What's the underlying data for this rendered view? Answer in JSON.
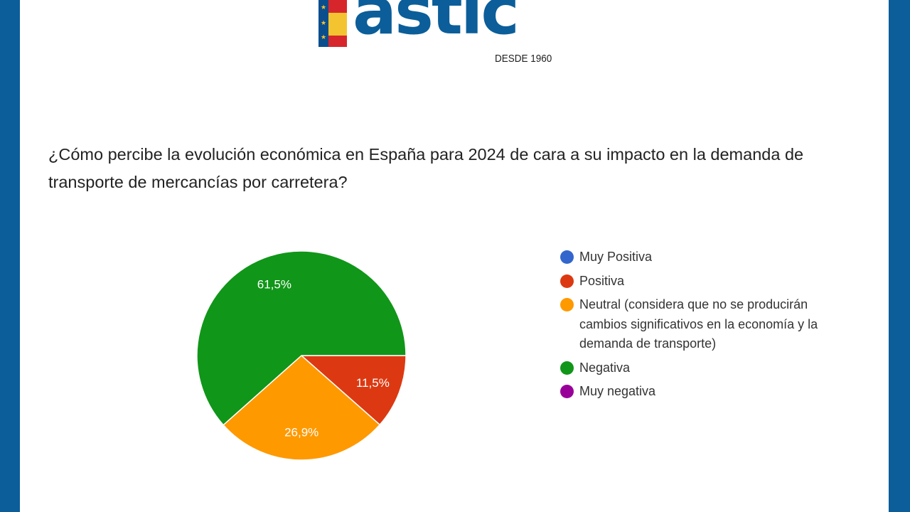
{
  "logo": {
    "word": "astic",
    "tagline": "DESDE 1960"
  },
  "question": "¿Cómo percibe la evolución económica en España para 2024 de cara a su impacto en la demanda de transporte de mercancías por carretera?",
  "chart_data": {
    "type": "pie",
    "title": "¿Cómo percibe la evolución económica en España para 2024 de cara a su impacto en la demanda de transporte de mercancías por carretera?",
    "legend_position": "right",
    "slices": [
      {
        "label": "Muy Positiva",
        "value": 0,
        "color": "#3366cc"
      },
      {
        "label": "Positiva",
        "value": 11.5,
        "display": "11,5%",
        "color": "#dc3912"
      },
      {
        "label": "Neutral (considera que no se producirán cambios significativos en la economía y la demanda de transporte)",
        "value": 26.9,
        "display": "26,9%",
        "color": "#ff9900"
      },
      {
        "label": "Negativa",
        "value": 61.5,
        "display": "61,5%",
        "color": "#109618"
      },
      {
        "label": "Muy negativa",
        "value": 0,
        "color": "#990099"
      }
    ]
  }
}
